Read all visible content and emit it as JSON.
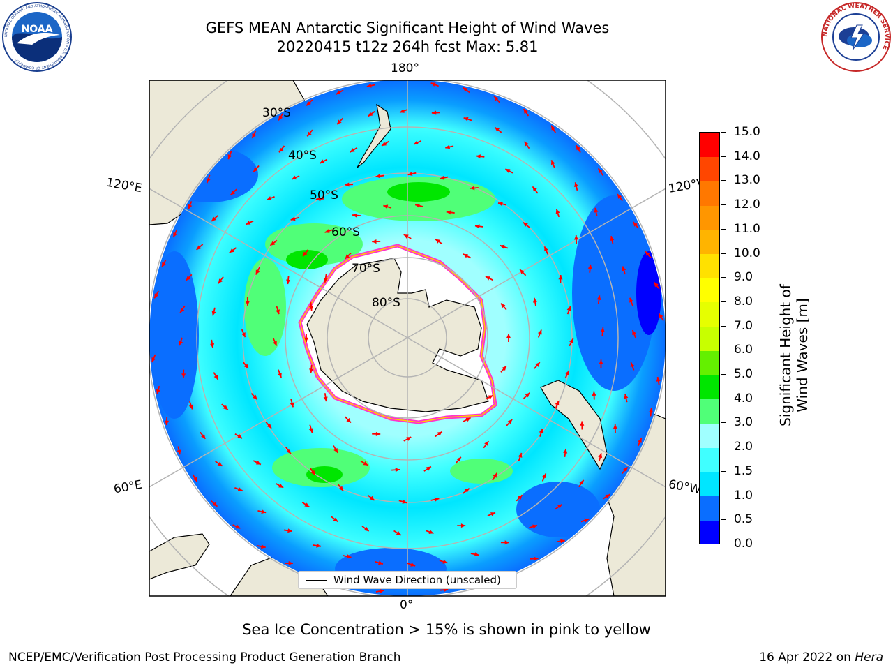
{
  "header": {
    "title_line1": "GEFS MEAN Antarctic Significant Height of Wind Waves",
    "title_line2": "20220415 t12z 264h fcst   Max: 5.81"
  },
  "logos": {
    "left": "NOAA",
    "left_ring_text": "NATIONAL OCEANIC AND ATMOSPHERIC ADMINISTRATION • U.S. DEPARTMENT OF COMMERCE",
    "right_ring_text": "NATIONAL WEATHER SERVICE"
  },
  "map": {
    "longitude_labels": {
      "top": "180°",
      "bottom": "0°",
      "left_upper": "120°E",
      "left_lower": "60°E",
      "right_upper": "120°W",
      "right_lower": "60°W"
    },
    "latitude_labels": [
      "30°S",
      "40°S",
      "50°S",
      "60°S",
      "70°S",
      "80°S"
    ],
    "colors": {
      "land": "#ece9d8",
      "ice": "#ffffff",
      "ice_edge": [
        "#ff33cc",
        "#ffcc00"
      ],
      "arrow": "#ff0000",
      "grid": "#b4b4b4"
    },
    "legend_label": "Wind Wave Direction (unscaled)"
  },
  "colorbar": {
    "title": "Significant Height of Wind Waves [m]",
    "ticks": [
      "0.0",
      "0.5",
      "1.0",
      "1.5",
      "2.0",
      "3.0",
      "4.0",
      "5.0",
      "6.0",
      "7.0",
      "8.0",
      "9.0",
      "10.0",
      "11.0",
      "12.0",
      "13.0",
      "14.0",
      "15.0"
    ],
    "colors": [
      "#0000ff",
      "#0a6eff",
      "#00e6ff",
      "#40ffff",
      "#a0ffff",
      "#50ff78",
      "#00e600",
      "#64f000",
      "#c8ff00",
      "#e6ff00",
      "#ffff00",
      "#ffe100",
      "#ffb400",
      "#ff9600",
      "#ff7800",
      "#ff4600",
      "#ff0000"
    ]
  },
  "footer": {
    "caption": "Sea Ice Concentration > 15% is shown in pink to yellow",
    "credit": "NCEP/EMC/Verification Post Processing Product Generation Branch",
    "date": "16 Apr 2022 on",
    "host": "Hera"
  }
}
